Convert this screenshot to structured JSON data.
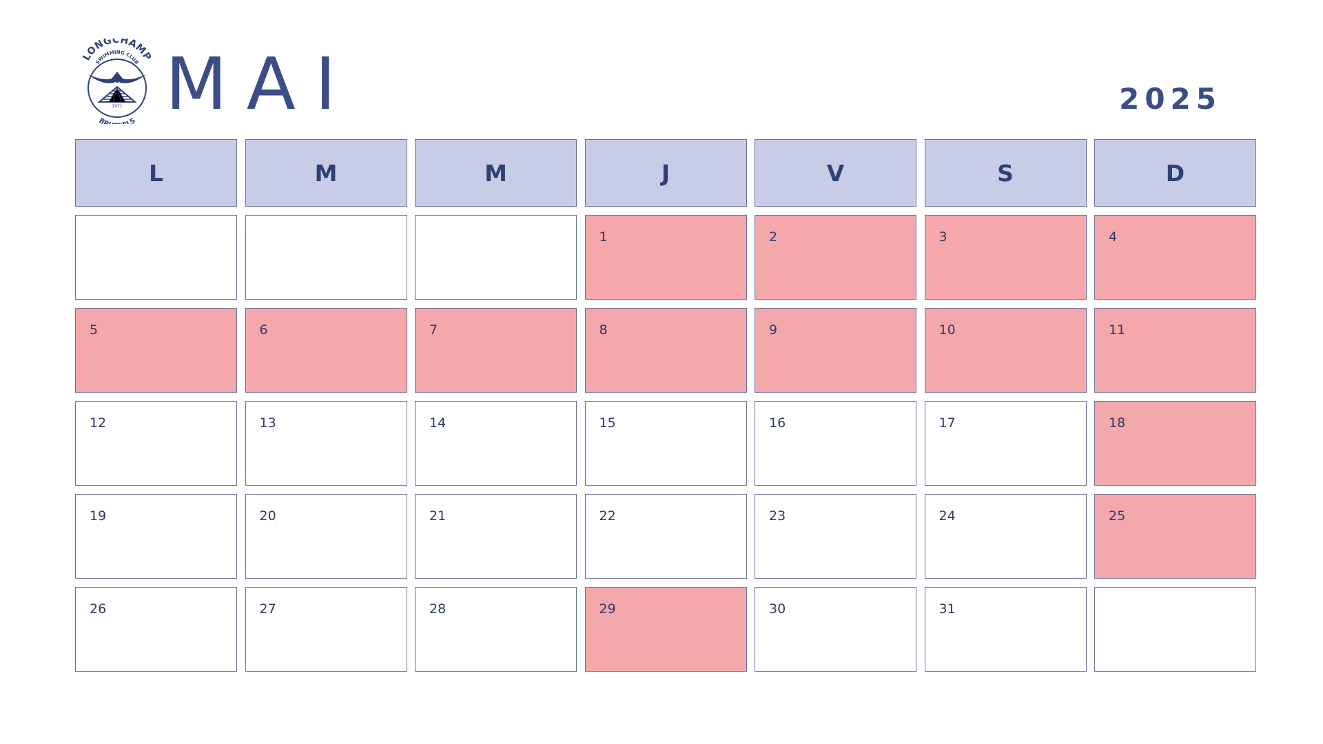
{
  "header": {
    "month": "MAI",
    "year": "2025",
    "logo": {
      "top_text": "LONGCHAMP",
      "sub_text": "SWIMMING CLUB",
      "year_text": "1971",
      "bottom_text": "BRUSSELS"
    }
  },
  "colors": {
    "accent": "#3a4d86",
    "header_bg": "#c8cce6",
    "highlight": "#f4a8ab",
    "border": "#6b7396"
  },
  "weekdays": [
    "L",
    "M",
    "M",
    "J",
    "V",
    "S",
    "D"
  ],
  "weeks": [
    [
      {
        "day": "",
        "highlight": false
      },
      {
        "day": "",
        "highlight": false
      },
      {
        "day": "",
        "highlight": false
      },
      {
        "day": "1",
        "highlight": true
      },
      {
        "day": "2",
        "highlight": true
      },
      {
        "day": "3",
        "highlight": true
      },
      {
        "day": "4",
        "highlight": true
      }
    ],
    [
      {
        "day": "5",
        "highlight": true
      },
      {
        "day": "6",
        "highlight": true
      },
      {
        "day": "7",
        "highlight": true
      },
      {
        "day": "8",
        "highlight": true
      },
      {
        "day": "9",
        "highlight": true
      },
      {
        "day": "10",
        "highlight": true
      },
      {
        "day": "11",
        "highlight": true
      }
    ],
    [
      {
        "day": "12",
        "highlight": false
      },
      {
        "day": "13",
        "highlight": false
      },
      {
        "day": "14",
        "highlight": false
      },
      {
        "day": "15",
        "highlight": false
      },
      {
        "day": "16",
        "highlight": false
      },
      {
        "day": "17",
        "highlight": false
      },
      {
        "day": "18",
        "highlight": true
      }
    ],
    [
      {
        "day": "19",
        "highlight": false
      },
      {
        "day": "20",
        "highlight": false
      },
      {
        "day": "21",
        "highlight": false
      },
      {
        "day": "22",
        "highlight": false
      },
      {
        "day": "23",
        "highlight": false
      },
      {
        "day": "24",
        "highlight": false
      },
      {
        "day": "25",
        "highlight": true
      }
    ],
    [
      {
        "day": "26",
        "highlight": false
      },
      {
        "day": "27",
        "highlight": false
      },
      {
        "day": "28",
        "highlight": false
      },
      {
        "day": "29",
        "highlight": true
      },
      {
        "day": "30",
        "highlight": false
      },
      {
        "day": "31",
        "highlight": false
      },
      {
        "day": "",
        "highlight": false
      }
    ]
  ]
}
